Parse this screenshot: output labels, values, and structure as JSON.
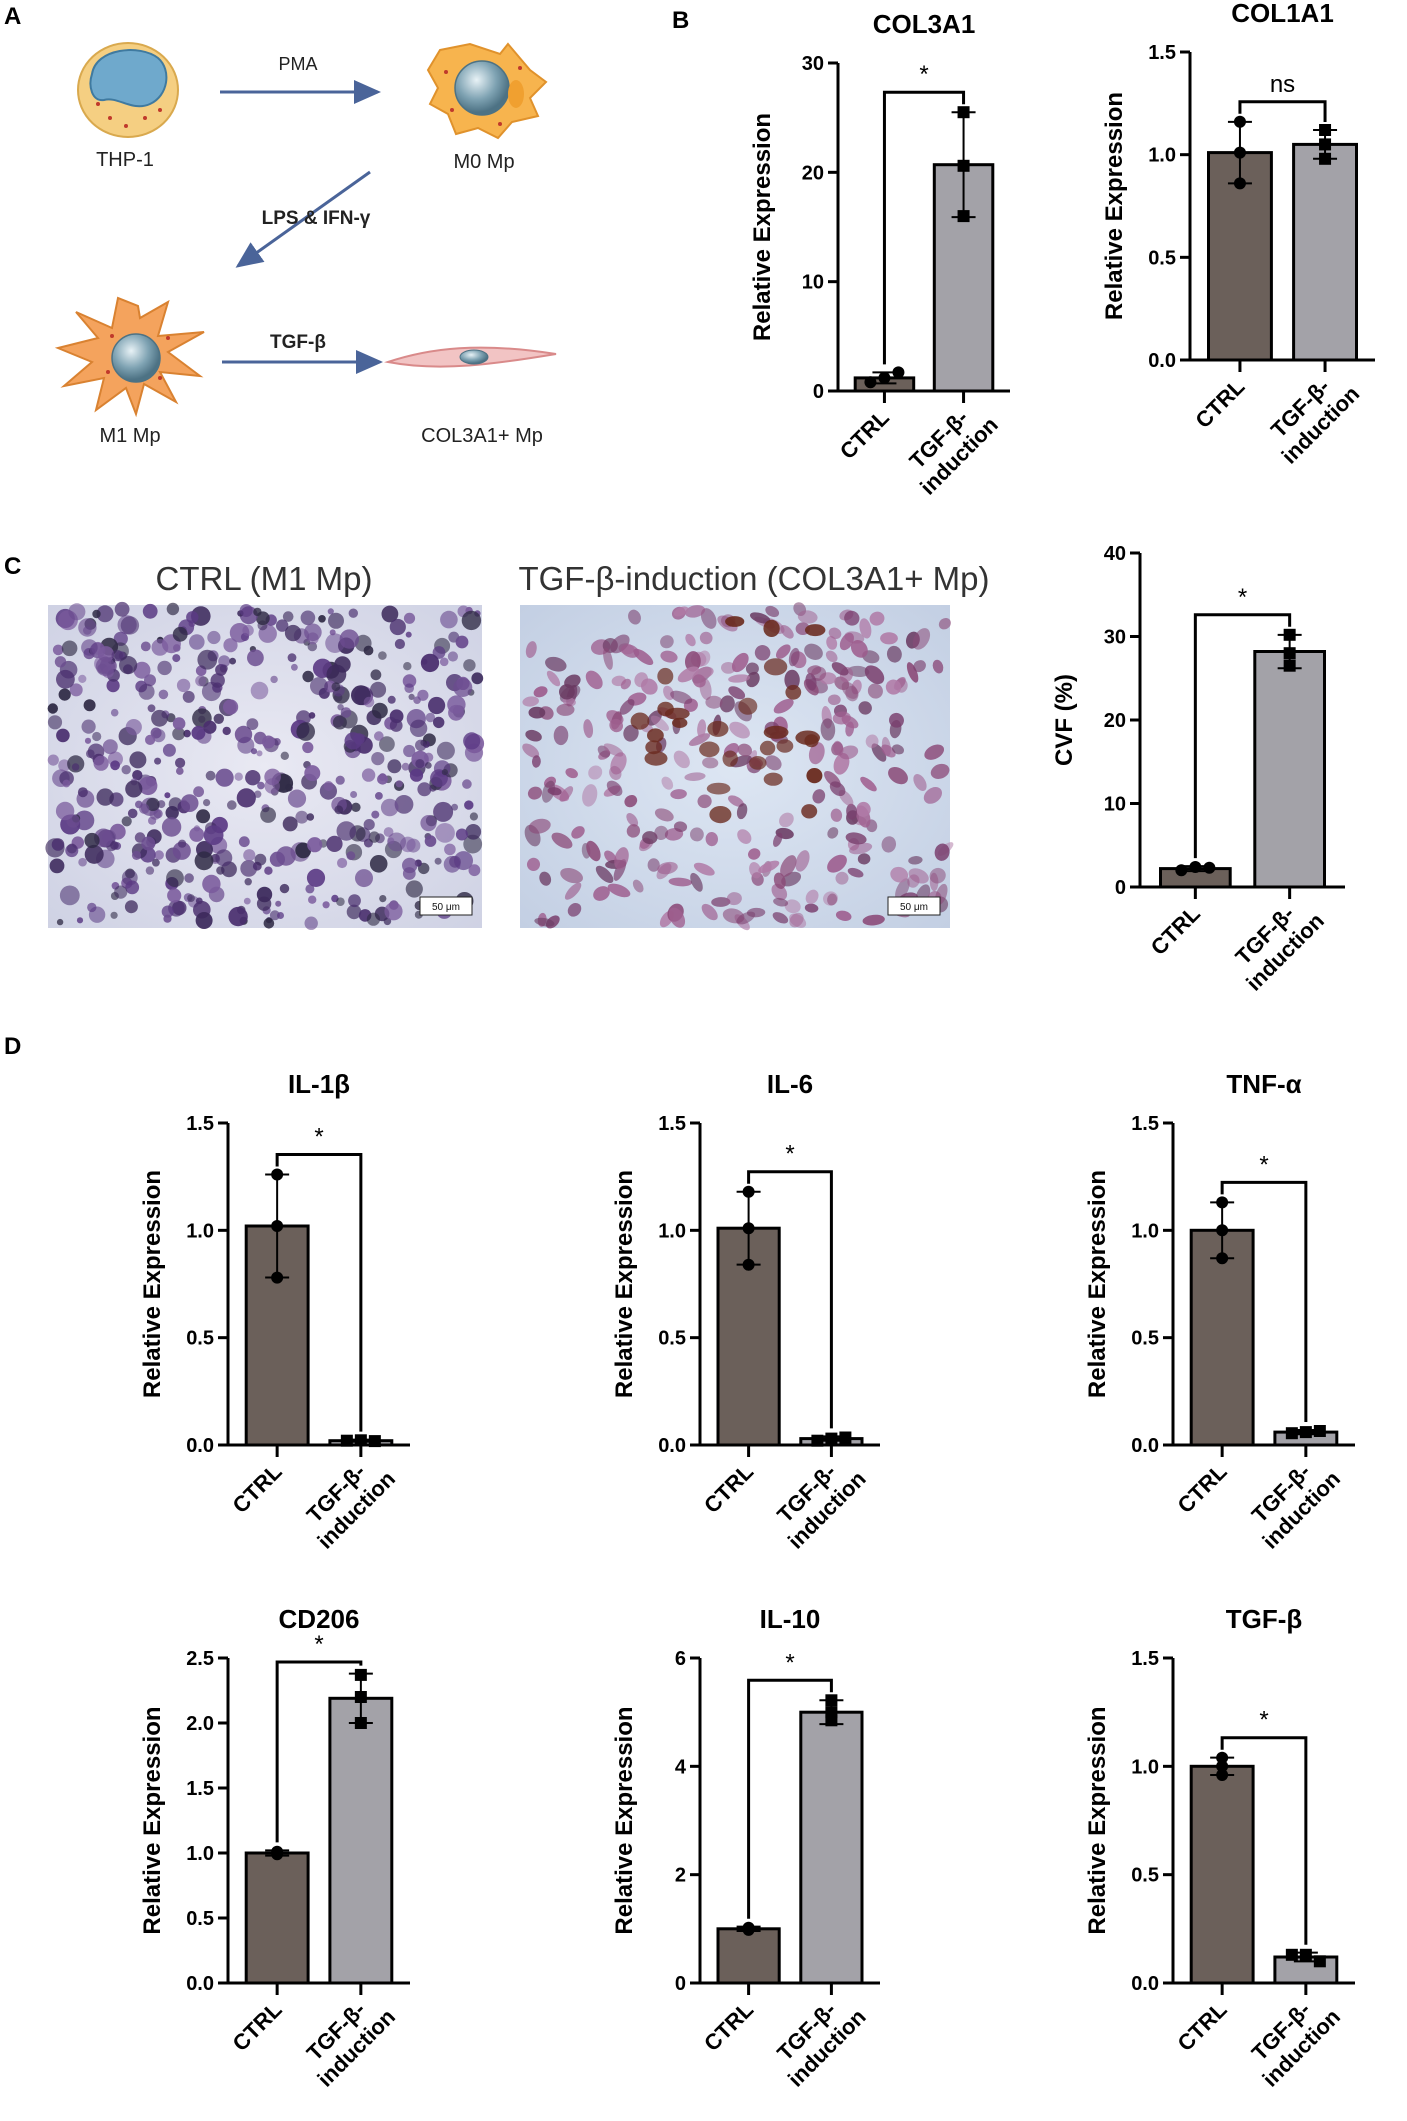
{
  "panels": {
    "a": "A",
    "b": "B",
    "c": "C",
    "d": "D"
  },
  "schematic": {
    "cells": {
      "thp1": "THP-1",
      "m0": "M0 Mp",
      "m1": "M1 Mp",
      "col3a1": "COL3A1+ Mp"
    },
    "arrows": {
      "pma": "PMA",
      "lps": "LPS & IFN-γ",
      "tgf": "TGF-β"
    }
  },
  "micrographs": {
    "ctrl_title": "CTRL (M1 Mp)",
    "tgf_title": "TGF-β-induction (COL3A1+ Mp)",
    "scale_label": "50 μm"
  },
  "colors": {
    "ctrl_bar": "#6b605a",
    "tgf_bar": "#a3a2a8",
    "arrow": "#4a6499"
  },
  "chart_data": [
    {
      "id": "col3a1",
      "type": "bar",
      "title": "COL3A1",
      "ylabel": "Relative Expression",
      "categories": [
        "CTRL",
        "TGF-β-induction"
      ],
      "category_lines": [
        [
          "CTRL"
        ],
        [
          "TGF-β-",
          "induction"
        ]
      ],
      "values": [
        1.2,
        20.7
      ],
      "errors": [
        0.5,
        4.8
      ],
      "points": [
        [
          0.8,
          1.7,
          1.2
        ],
        [
          25.5,
          16.0,
          20.6
        ]
      ],
      "markers": [
        "circle",
        "square"
      ],
      "ylim": [
        0,
        30
      ],
      "yticks": [
        0,
        10,
        20,
        30
      ],
      "ytick_labels": [
        "0",
        "10",
        "20",
        "30"
      ],
      "significance": "*"
    },
    {
      "id": "col1a1",
      "type": "bar",
      "title": "COL1A1",
      "ylabel": "Relative Expression",
      "categories": [
        "CTRL",
        "TGF-β-induction"
      ],
      "category_lines": [
        [
          "CTRL"
        ],
        [
          "TGF-β-",
          "induction"
        ]
      ],
      "values": [
        1.01,
        1.05
      ],
      "errors": [
        0.15,
        0.07
      ],
      "points": [
        [
          1.16,
          0.86,
          1.01
        ],
        [
          1.12,
          0.98,
          1.05
        ]
      ],
      "markers": [
        "circle",
        "square"
      ],
      "ylim": [
        0,
        1.5
      ],
      "yticks": [
        0,
        0.5,
        1.0,
        1.5
      ],
      "ytick_labels": [
        "0.0",
        "0.5",
        "1.0",
        "1.5"
      ],
      "significance": "ns"
    },
    {
      "id": "cvf",
      "type": "bar",
      "title": "",
      "ylabel": "CVF (%)",
      "categories": [
        "CTRL",
        "TGF-β-induction"
      ],
      "category_lines": [
        [
          "CTRL"
        ],
        [
          "TGF-β-",
          "induction"
        ]
      ],
      "values": [
        2.2,
        28.2
      ],
      "errors": [
        0.3,
        2.0
      ],
      "points": [
        [
          2.0,
          2.3,
          2.4
        ],
        [
          30.2,
          26.5,
          28.0
        ]
      ],
      "markers": [
        "circle",
        "square"
      ],
      "ylim": [
        0,
        40
      ],
      "yticks": [
        0,
        10,
        20,
        30,
        40
      ],
      "ytick_labels": [
        "0",
        "10",
        "20",
        "30",
        "40"
      ],
      "significance": "*"
    },
    {
      "id": "il1b",
      "type": "bar",
      "title": "IL-1β",
      "ylabel": "Relative Expression",
      "categories": [
        "CTRL",
        "TGF-β-induction"
      ],
      "category_lines": [
        [
          "CTRL"
        ],
        [
          "TGF-β-",
          "induction"
        ]
      ],
      "values": [
        1.02,
        0.02
      ],
      "errors": [
        0.24,
        0.005
      ],
      "points": [
        [
          1.26,
          0.78,
          1.02
        ],
        [
          0.02,
          0.018,
          0.022
        ]
      ],
      "markers": [
        "circle",
        "square"
      ],
      "ylim": [
        0,
        1.5
      ],
      "yticks": [
        0,
        0.5,
        1.0,
        1.5
      ],
      "ytick_labels": [
        "0.0",
        "0.5",
        "1.0",
        "1.5"
      ],
      "significance": "*"
    },
    {
      "id": "il6",
      "type": "bar",
      "title": "IL-6",
      "ylabel": "Relative Expression",
      "categories": [
        "CTRL",
        "TGF-β-induction"
      ],
      "category_lines": [
        [
          "CTRL"
        ],
        [
          "TGF-β-",
          "induction"
        ]
      ],
      "values": [
        1.01,
        0.03
      ],
      "errors": [
        0.17,
        0.01
      ],
      "points": [
        [
          1.18,
          0.84,
          1.01
        ],
        [
          0.02,
          0.035,
          0.03
        ]
      ],
      "markers": [
        "circle",
        "square"
      ],
      "ylim": [
        0,
        1.5
      ],
      "yticks": [
        0,
        0.5,
        1.0,
        1.5
      ],
      "ytick_labels": [
        "0.0",
        "0.5",
        "1.0",
        "1.5"
      ],
      "significance": "*"
    },
    {
      "id": "tnfa",
      "type": "bar",
      "title": "TNF-α",
      "ylabel": "Relative Expression",
      "categories": [
        "CTRL",
        "TGF-β-induction"
      ],
      "category_lines": [
        [
          "CTRL"
        ],
        [
          "TGF-β-",
          "induction"
        ]
      ],
      "values": [
        1.0,
        0.06
      ],
      "errors": [
        0.13,
        0.01
      ],
      "points": [
        [
          1.13,
          0.87,
          1.0
        ],
        [
          0.055,
          0.065,
          0.06
        ]
      ],
      "markers": [
        "circle",
        "square"
      ],
      "ylim": [
        0,
        1.5
      ],
      "yticks": [
        0,
        0.5,
        1.0,
        1.5
      ],
      "ytick_labels": [
        "0.0",
        "0.5",
        "1.0",
        "1.5"
      ],
      "significance": "*"
    },
    {
      "id": "cd206",
      "type": "bar",
      "title": "CD206",
      "ylabel": "Relative Expression",
      "categories": [
        "CTRL",
        "TGF-β-induction"
      ],
      "category_lines": [
        [
          "CTRL"
        ],
        [
          "TGF-β-",
          "induction"
        ]
      ],
      "values": [
        1.0,
        2.19
      ],
      "errors": [
        0.02,
        0.19
      ],
      "points": [
        [
          0.99,
          1.01,
          1.0
        ],
        [
          2.37,
          2.0,
          2.2
        ]
      ],
      "markers": [
        "circle",
        "square"
      ],
      "ylim": [
        0,
        2.5
      ],
      "yticks": [
        0,
        0.5,
        1.0,
        1.5,
        2.0,
        2.5
      ],
      "ytick_labels": [
        "0.0",
        "0.5",
        "1.0",
        "1.5",
        "2.0",
        "2.5"
      ],
      "significance": "*"
    },
    {
      "id": "il10",
      "type": "bar",
      "title": "IL-10",
      "ylabel": "Relative Expression",
      "categories": [
        "CTRL",
        "TGF-β-induction"
      ],
      "category_lines": [
        [
          "CTRL"
        ],
        [
          "TGF-β-",
          "induction"
        ]
      ],
      "values": [
        1.0,
        5.0
      ],
      "errors": [
        0.04,
        0.22
      ],
      "points": [
        [
          0.98,
          1.02,
          1.0
        ],
        [
          5.22,
          4.85,
          5.0
        ]
      ],
      "markers": [
        "circle",
        "square"
      ],
      "ylim": [
        0,
        6
      ],
      "yticks": [
        0,
        2,
        4,
        6
      ],
      "ytick_labels": [
        "0",
        "2",
        "4",
        "6"
      ],
      "significance": "*"
    },
    {
      "id": "tgfb",
      "type": "bar",
      "title": "TGF-β",
      "ylabel": "Relative Expression",
      "categories": [
        "CTRL",
        "TGF-β-induction"
      ],
      "category_lines": [
        [
          "CTRL"
        ],
        [
          "TGF-β-",
          "induction"
        ]
      ],
      "values": [
        1.0,
        0.12
      ],
      "errors": [
        0.04,
        0.02
      ],
      "points": [
        [
          1.04,
          0.96,
          1.0
        ],
        [
          0.13,
          0.1,
          0.13
        ]
      ],
      "markers": [
        "circle",
        "square"
      ],
      "ylim": [
        0,
        1.5
      ],
      "yticks": [
        0,
        0.5,
        1.0,
        1.5
      ],
      "ytick_labels": [
        "0.0",
        "0.5",
        "1.0",
        "1.5"
      ],
      "significance": "*"
    }
  ]
}
